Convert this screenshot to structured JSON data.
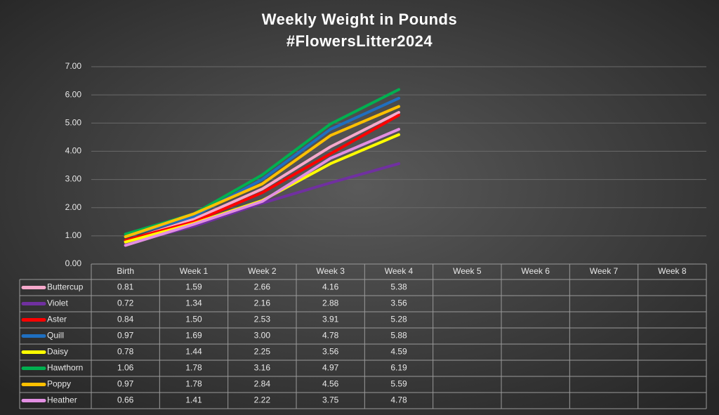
{
  "chart_data": {
    "type": "line",
    "title": "Weekly Weight in Pounds",
    "subtitle": "#FlowersLitter2024",
    "categories": [
      "Birth",
      "Week 1",
      "Week 2",
      "Week 3",
      "Week 4",
      "Week 5",
      "Week 6",
      "Week 7",
      "Week 8"
    ],
    "ylim": [
      0,
      7
    ],
    "yticks": [
      {
        "value": 0,
        "label": "0.00"
      },
      {
        "value": 1,
        "label": "1.00"
      },
      {
        "value": 2,
        "label": "2.00"
      },
      {
        "value": 3,
        "label": "3.00"
      },
      {
        "value": 4,
        "label": "4.00"
      },
      {
        "value": 5,
        "label": "5.00"
      },
      {
        "value": 6,
        "label": "6.00"
      },
      {
        "value": 7,
        "label": "7.00"
      }
    ],
    "grid": true,
    "data_table": true,
    "series": [
      {
        "name": "Buttercup",
        "color": "#f6a8cb",
        "values": [
          0.81,
          1.59,
          2.66,
          4.16,
          5.38,
          null,
          null,
          null,
          null
        ],
        "value_labels": [
          "0.81",
          "1.59",
          "2.66",
          "4.16",
          "5.38",
          null,
          null,
          null,
          null
        ]
      },
      {
        "name": "Violet",
        "color": "#7030a0",
        "values": [
          0.72,
          1.34,
          2.16,
          2.88,
          3.56,
          null,
          null,
          null,
          null
        ],
        "value_labels": [
          "0.72",
          "1.34",
          "2.16",
          "2.88",
          "3.56",
          null,
          null,
          null,
          null
        ]
      },
      {
        "name": "Aster",
        "color": "#ff0000",
        "values": [
          0.84,
          1.5,
          2.53,
          3.91,
          5.28,
          null,
          null,
          null,
          null
        ],
        "value_labels": [
          "0.84",
          "1.50",
          "2.53",
          "3.91",
          "5.28",
          null,
          null,
          null,
          null
        ]
      },
      {
        "name": "Quill",
        "color": "#1f6fc0",
        "values": [
          0.97,
          1.69,
          3.0,
          4.78,
          5.88,
          null,
          null,
          null,
          null
        ],
        "value_labels": [
          "0.97",
          "1.69",
          "3.00",
          "4.78",
          "5.88",
          null,
          null,
          null,
          null
        ]
      },
      {
        "name": "Daisy",
        "color": "#ffff00",
        "values": [
          0.78,
          1.44,
          2.25,
          3.56,
          4.59,
          null,
          null,
          null,
          null
        ],
        "value_labels": [
          "0.78",
          "1.44",
          "2.25",
          "3.56",
          "4.59",
          null,
          null,
          null,
          null
        ]
      },
      {
        "name": "Hawthorn",
        "color": "#00b050",
        "values": [
          1.06,
          1.78,
          3.16,
          4.97,
          6.19,
          null,
          null,
          null,
          null
        ],
        "value_labels": [
          "1.06",
          "1.78",
          "3.16",
          "4.97",
          "6.19",
          null,
          null,
          null,
          null
        ]
      },
      {
        "name": "Poppy",
        "color": "#ffc000",
        "values": [
          0.97,
          1.78,
          2.84,
          4.56,
          5.59,
          null,
          null,
          null,
          null
        ],
        "value_labels": [
          "0.97",
          "1.78",
          "2.84",
          "4.56",
          "5.59",
          null,
          null,
          null,
          null
        ]
      },
      {
        "name": "Heather",
        "color": "#e28fe2",
        "values": [
          0.66,
          1.41,
          2.22,
          3.75,
          4.78,
          null,
          null,
          null,
          null
        ],
        "value_labels": [
          "0.66",
          "1.41",
          "2.22",
          "3.75",
          "4.78",
          null,
          null,
          null,
          null
        ]
      }
    ]
  }
}
